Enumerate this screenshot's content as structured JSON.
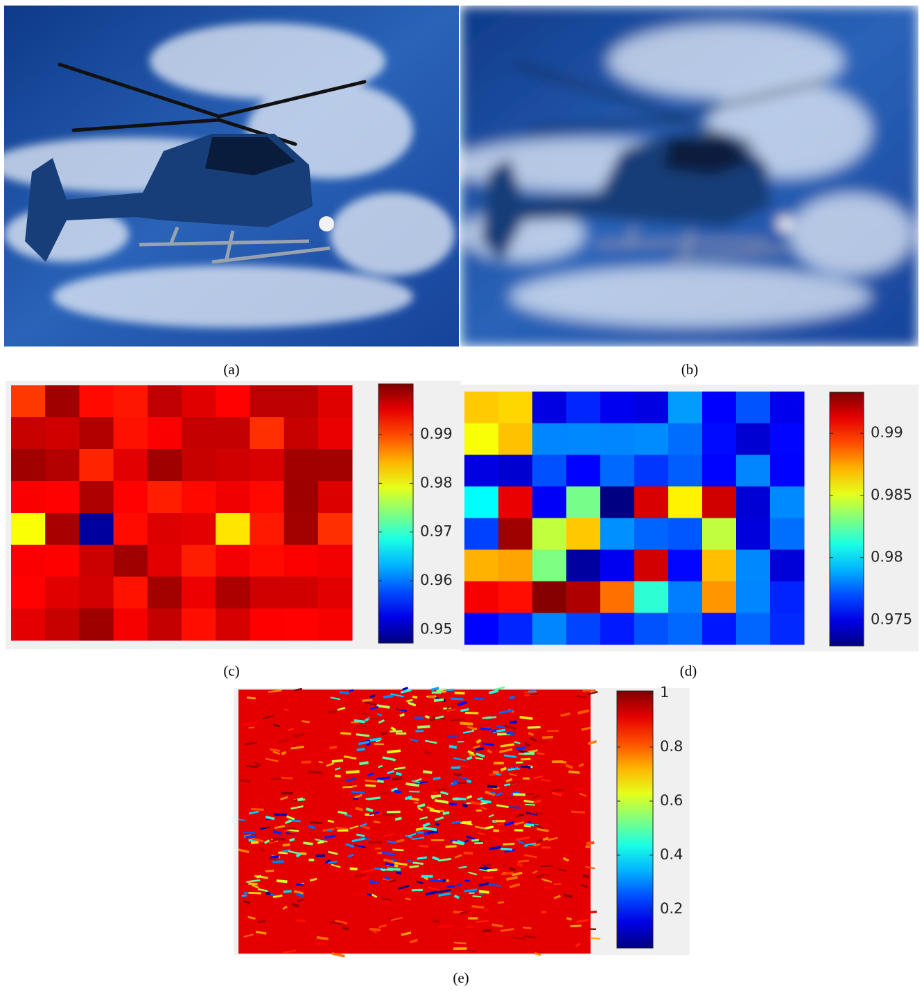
{
  "panels": [
    {
      "label": "(a)"
    },
    {
      "label": "(b)"
    },
    {
      "label": "(c)",
      "colorbar": {
        "lim": [
          0.9472,
          1.0004
        ],
        "ticks": [
          0.95,
          0.96,
          0.97,
          0.98,
          0.99
        ]
      }
    },
    {
      "label": "(d)",
      "colorbar": {
        "lim": [
          0.9729,
          0.9933
        ],
        "ticks": [
          0.975,
          0.98,
          0.985,
          0.99
        ]
      }
    },
    {
      "label": "(e)",
      "colorbar": {
        "lim": [
          0.0564,
          1.0077
        ],
        "ticks": [
          0.2,
          0.4,
          0.6,
          0.8,
          1
        ]
      }
    }
  ]
}
